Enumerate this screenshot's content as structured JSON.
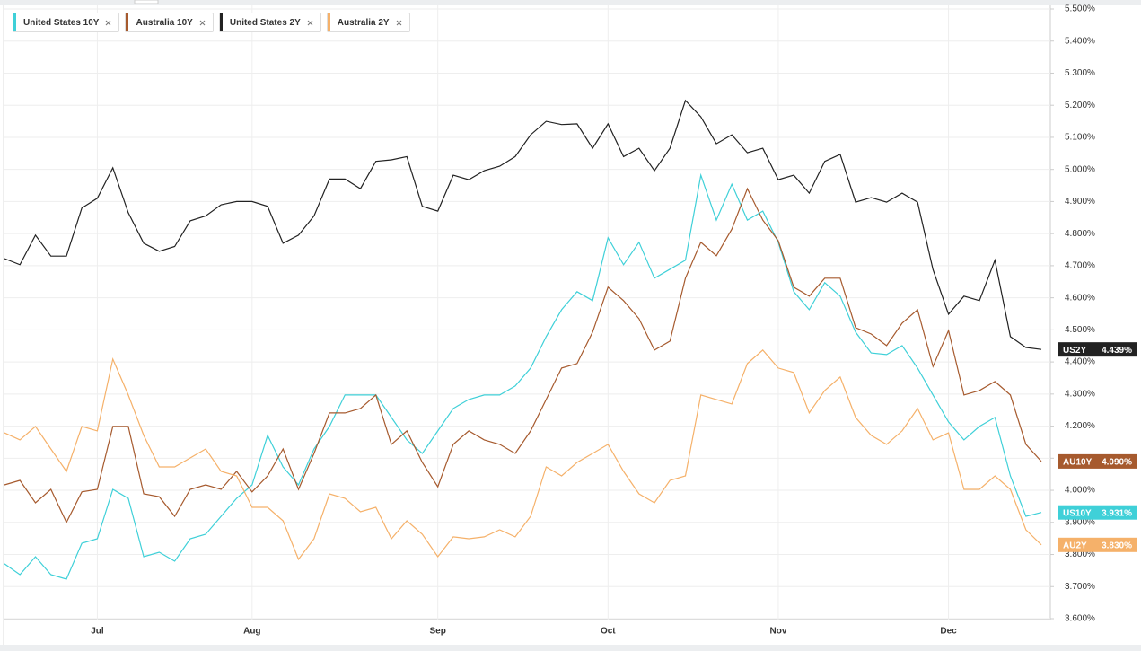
{
  "chart_data": {
    "type": "line",
    "categories": [
      null,
      null,
      null,
      null,
      null,
      null,
      "Jul",
      null,
      null,
      null,
      null,
      null,
      null,
      null,
      null,
      null,
      "Aug",
      null,
      null,
      null,
      null,
      null,
      null,
      null,
      null,
      null,
      null,
      null,
      "Sep",
      null,
      null,
      null,
      null,
      null,
      null,
      null,
      null,
      null,
      null,
      "Oct",
      null,
      null,
      null,
      null,
      null,
      null,
      null,
      null,
      null,
      null,
      "Nov",
      null,
      null,
      null,
      null,
      null,
      null,
      null,
      null,
      null,
      null,
      "Dec",
      null,
      null,
      null,
      null,
      null,
      null
    ],
    "series": [
      {
        "name": "United States 10Y",
        "ticker": "US10Y",
        "color": "#3fd0d8",
        "last": {
          "value": 3.931,
          "label": "3.931%"
        },
        "values": [
          3.771,
          3.737,
          3.793,
          3.737,
          3.723,
          3.835,
          3.849,
          4.003,
          3.975,
          3.793,
          3.807,
          3.779,
          3.849,
          3.863,
          3.919,
          3.975,
          4.017,
          4.171,
          4.073,
          4.017,
          4.129,
          4.199,
          4.297,
          4.297,
          4.297,
          4.227,
          4.157,
          4.115,
          4.185,
          4.255,
          4.283,
          4.297,
          4.297,
          4.325,
          4.381,
          4.479,
          4.563,
          4.619,
          4.591,
          4.787,
          4.703,
          4.773,
          4.661,
          4.689,
          4.717,
          4.982,
          4.842,
          4.954,
          4.842,
          4.87,
          4.773,
          4.619,
          4.563,
          4.647,
          4.605,
          4.493,
          4.428,
          4.423,
          4.451,
          4.381,
          4.297,
          4.213,
          4.157,
          4.199,
          4.227,
          4.045,
          3.919,
          3.931
        ]
      },
      {
        "name": "Australia 10Y",
        "ticker": "AU10Y",
        "color": "#a65a2e",
        "last": {
          "value": 4.09,
          "label": "4.090%"
        },
        "values": [
          4.017,
          4.031,
          3.961,
          4.003,
          3.9,
          3.995,
          4.003,
          4.199,
          4.199,
          3.989,
          3.98,
          3.919,
          4.003,
          4.017,
          4.003,
          4.059,
          3.995,
          4.045,
          4.129,
          4.003,
          4.115,
          4.241,
          4.241,
          4.255,
          4.297,
          4.143,
          4.185,
          4.087,
          4.011,
          4.143,
          4.185,
          4.157,
          4.143,
          4.115,
          4.185,
          4.283,
          4.381,
          4.395,
          4.493,
          4.633,
          4.591,
          4.535,
          4.437,
          4.465,
          4.661,
          4.773,
          4.731,
          4.814,
          4.94,
          4.842,
          4.778,
          4.633,
          4.605,
          4.661,
          4.661,
          4.507,
          4.487,
          4.451,
          4.521,
          4.563,
          4.386,
          4.498,
          4.297,
          4.311,
          4.339,
          4.297,
          4.143,
          4.09
        ]
      },
      {
        "name": "United States 2Y",
        "ticker": "US2Y",
        "color": "#222222",
        "last": {
          "value": 4.439,
          "label": "4.439%"
        },
        "values": [
          4.722,
          4.703,
          4.795,
          4.73,
          4.73,
          4.88,
          4.91,
          5.005,
          4.865,
          4.77,
          4.745,
          4.76,
          4.84,
          4.855,
          4.89,
          4.9,
          4.9,
          4.885,
          4.77,
          4.795,
          4.855,
          4.97,
          4.97,
          4.94,
          5.025,
          5.03,
          5.04,
          4.885,
          4.87,
          4.982,
          4.968,
          4.996,
          5.01,
          5.04,
          5.108,
          5.15,
          5.14,
          5.142,
          5.066,
          5.142,
          5.04,
          5.066,
          4.996,
          5.066,
          5.215,
          5.164,
          5.08,
          5.108,
          5.052,
          5.066,
          4.968,
          4.982,
          4.926,
          5.025,
          5.047,
          4.898,
          4.912,
          4.898,
          4.926,
          4.898,
          4.688,
          4.549,
          4.605,
          4.591,
          4.717,
          4.479,
          4.445,
          4.439
        ]
      },
      {
        "name": "Australia 2Y",
        "ticker": "AU2Y",
        "color": "#f5b16a",
        "last": {
          "value": 3.83,
          "label": "3.830%"
        },
        "values": [
          4.179,
          4.157,
          4.199,
          4.129,
          4.059,
          4.199,
          4.185,
          4.409,
          4.297,
          4.171,
          4.073,
          4.073,
          4.101,
          4.129,
          4.059,
          4.045,
          3.947,
          3.947,
          3.905,
          3.785,
          3.849,
          3.989,
          3.975,
          3.933,
          3.947,
          3.849,
          3.905,
          3.863,
          3.793,
          3.855,
          3.849,
          3.855,
          3.877,
          3.855,
          3.919,
          4.073,
          4.045,
          4.087,
          4.115,
          4.143,
          4.059,
          3.989,
          3.961,
          4.031,
          4.045,
          4.297,
          4.283,
          4.269,
          4.395,
          4.437,
          4.381,
          4.367,
          4.241,
          4.311,
          4.353,
          4.227,
          4.171,
          4.143,
          4.185,
          4.255,
          4.157,
          4.179,
          4.003,
          4.003,
          4.045,
          4.003,
          3.877,
          3.83
        ]
      }
    ],
    "ylim": [
      3.6,
      5.5
    ],
    "yticks": [
      {
        "value": 3.6,
        "label": "3.600%"
      },
      {
        "value": 3.7,
        "label": "3.700%"
      },
      {
        "value": 3.8,
        "label": "3.800%"
      },
      {
        "value": 3.9,
        "label": "3.900%"
      },
      {
        "value": 4.0,
        "label": "4.000%"
      },
      {
        "value": 4.1,
        "label": "4.100%"
      },
      {
        "value": 4.2,
        "label": "4.200%"
      },
      {
        "value": 4.3,
        "label": "4.300%"
      },
      {
        "value": 4.4,
        "label": "4.400%"
      },
      {
        "value": 4.5,
        "label": "4.500%"
      },
      {
        "value": 4.6,
        "label": "4.600%"
      },
      {
        "value": 4.7,
        "label": "4.700%"
      },
      {
        "value": 4.8,
        "label": "4.800%"
      },
      {
        "value": 4.9,
        "label": "4.900%"
      },
      {
        "value": 5.0,
        "label": "5.000%"
      },
      {
        "value": 5.1,
        "label": "5.100%"
      },
      {
        "value": 5.2,
        "label": "5.200%"
      },
      {
        "value": 5.3,
        "label": "5.300%"
      },
      {
        "value": 5.4,
        "label": "5.400%"
      },
      {
        "value": 5.5,
        "label": "5.500%"
      }
    ],
    "grid": true
  }
}
